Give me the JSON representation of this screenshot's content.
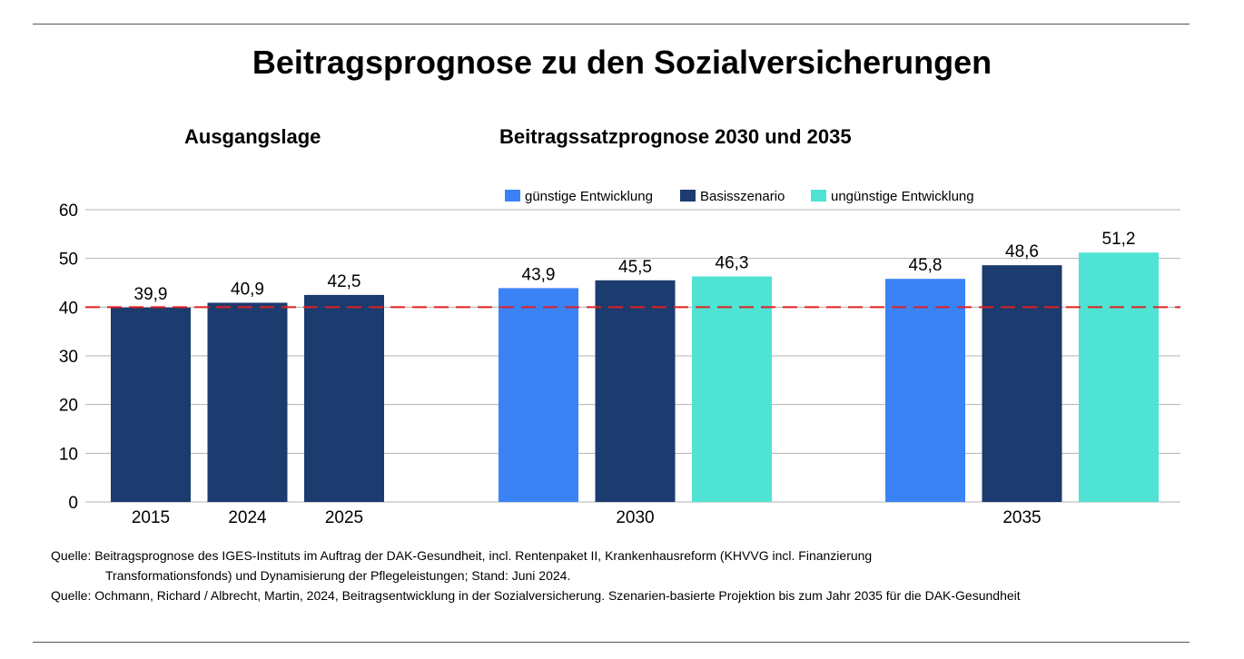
{
  "title": "Beitragsprognose zu den Sozialversicherungen",
  "sections": {
    "left": "Ausgangslage",
    "right": "Beitragssatzprognose 2030 und 2035"
  },
  "colors": {
    "guenstig": "#3b82f6",
    "basis": "#1c3b6e",
    "unguenstig": "#4fe3d3",
    "reference_line": "#e02020",
    "grid": "#b3b3b3"
  },
  "chart_data": {
    "type": "bar",
    "ylim": [
      0,
      60
    ],
    "yticks": [
      0,
      10,
      20,
      30,
      40,
      50,
      60
    ],
    "reference_line": 40,
    "grid": true,
    "legend": {
      "placement": "top",
      "entries": [
        {
          "name": "günstige Entwicklung",
          "color_key": "guenstig"
        },
        {
          "name": "Basisszenario",
          "color_key": "basis"
        },
        {
          "name": "ungünstige Entwicklung",
          "color_key": "unguenstig"
        }
      ]
    },
    "groups": [
      {
        "label": "",
        "bars": [
          {
            "category": "2015",
            "value": 39.9,
            "label": "39,9",
            "color_key": "basis"
          },
          {
            "category": "2024",
            "value": 40.9,
            "label": "40,9",
            "color_key": "basis"
          },
          {
            "category": "2025",
            "value": 42.5,
            "label": "42,5",
            "color_key": "basis"
          }
        ]
      },
      {
        "label": "2030",
        "bars": [
          {
            "category": "",
            "value": 43.9,
            "label": "43,9",
            "color_key": "guenstig"
          },
          {
            "category": "",
            "value": 45.5,
            "label": "45,5",
            "color_key": "basis"
          },
          {
            "category": "",
            "value": 46.3,
            "label": "46,3",
            "color_key": "unguenstig"
          }
        ]
      },
      {
        "label": "2035",
        "bars": [
          {
            "category": "",
            "value": 45.8,
            "label": "45,8",
            "color_key": "guenstig"
          },
          {
            "category": "",
            "value": 48.6,
            "label": "48,6",
            "color_key": "basis"
          },
          {
            "category": "",
            "value": 51.2,
            "label": "51,2",
            "color_key": "unguenstig"
          }
        ]
      }
    ]
  },
  "sources": {
    "line1": "Quelle: Beitragsprognose des IGES-Instituts im Auftrag der DAK-Gesundheit, incl. Rentenpaket II, Krankenhausreform (KHVVG incl. Finanzierung",
    "line2": "Transformationsfonds) und Dynamisierung der Pflegeleistungen; Stand: Juni 2024.",
    "line3": "Quelle: Ochmann, Richard / Albrecht, Martin, 2024, Beitragsentwicklung in der Sozialversicherung. Szenarien-basierte Projektion bis zum Jahr 2035 für die DAK-Gesundheit"
  }
}
